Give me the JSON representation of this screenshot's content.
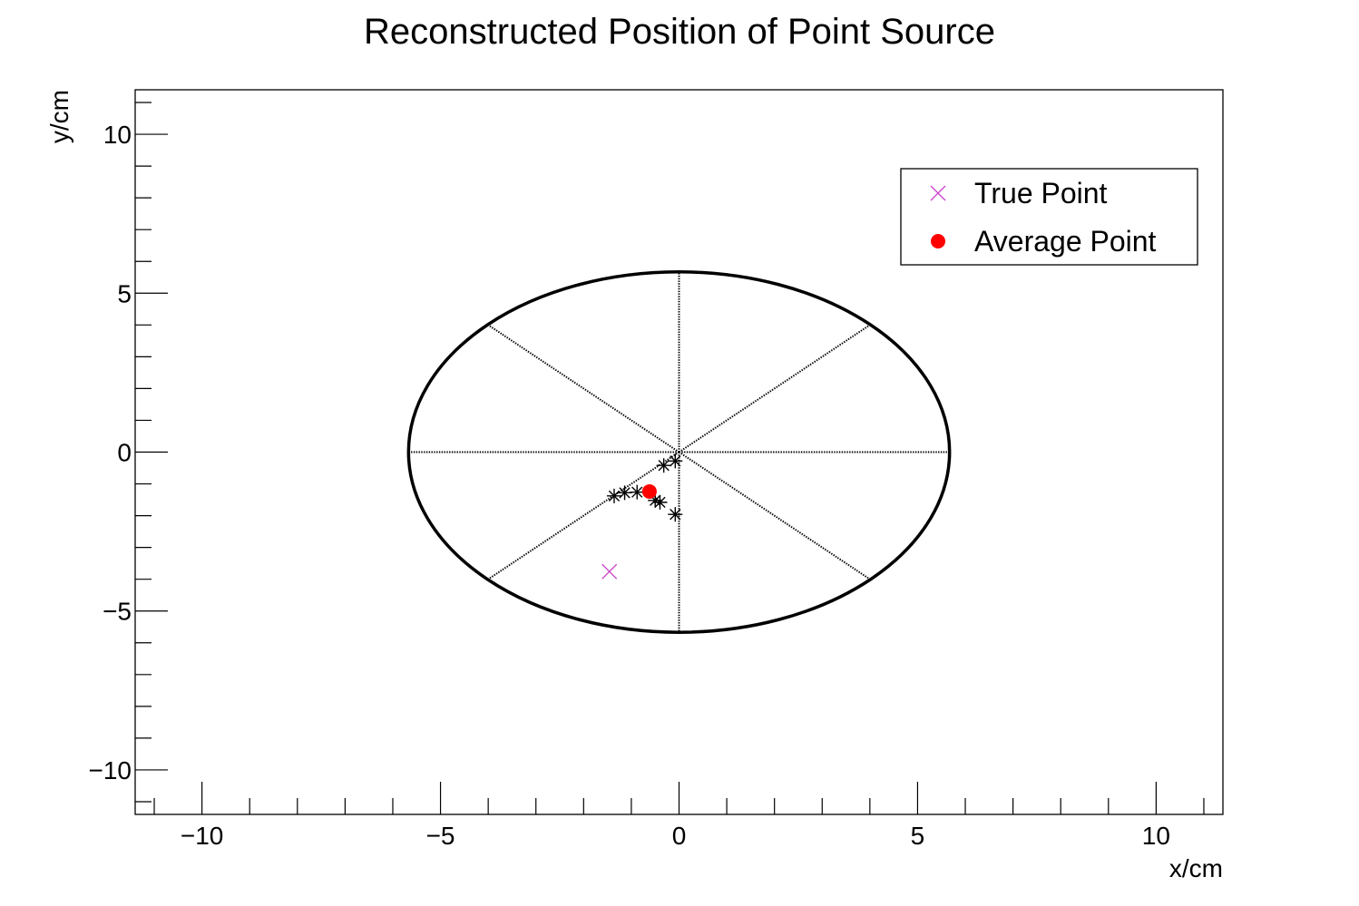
{
  "chart_data": {
    "type": "scatter",
    "title": "Reconstructed Position of Point Source",
    "xlabel": "x/cm",
    "ylabel": "y/cm",
    "xlim": [
      -11.4,
      11.4
    ],
    "ylim": [
      -11.4,
      11.4
    ],
    "x_ticks": [
      -10,
      -5,
      0,
      5,
      10
    ],
    "y_ticks": [
      -10,
      -5,
      0,
      5,
      10
    ],
    "x_tick_labels": [
      "−10",
      "−5",
      "0",
      "5",
      "10"
    ],
    "y_tick_labels": [
      "−10",
      "−5",
      "0",
      "5",
      "10"
    ],
    "detector_outline": {
      "shape": "circle",
      "radius": 5.67,
      "center": [
        0,
        0
      ],
      "spokes_angles_deg": [
        0,
        45,
        90,
        135,
        180,
        225,
        270,
        315
      ]
    },
    "series": [
      {
        "name": "",
        "marker": "asterisk",
        "color": "#000000",
        "points": [
          [
            -0.08,
            -0.28
          ],
          [
            -0.32,
            -0.42
          ],
          [
            -1.36,
            -1.38
          ],
          [
            -1.14,
            -1.28
          ],
          [
            -0.88,
            -1.26
          ],
          [
            -0.5,
            -1.52
          ],
          [
            -0.4,
            -1.58
          ],
          [
            -0.08,
            -1.96
          ]
        ]
      },
      {
        "name": "True Point",
        "marker": "x",
        "color": "#cc44cc",
        "points": [
          [
            -1.46,
            -3.76
          ]
        ]
      },
      {
        "name": "Average Point",
        "marker": "dot",
        "color": "#ff0000",
        "points": [
          [
            -0.62,
            -1.24
          ]
        ]
      }
    ],
    "legend": {
      "placement": "top-right",
      "entries": [
        {
          "label": "True Point",
          "marker": "x",
          "color": "#cc44cc"
        },
        {
          "label": "Average Point",
          "marker": "dot",
          "color": "#ff0000"
        }
      ]
    },
    "grid": false
  }
}
